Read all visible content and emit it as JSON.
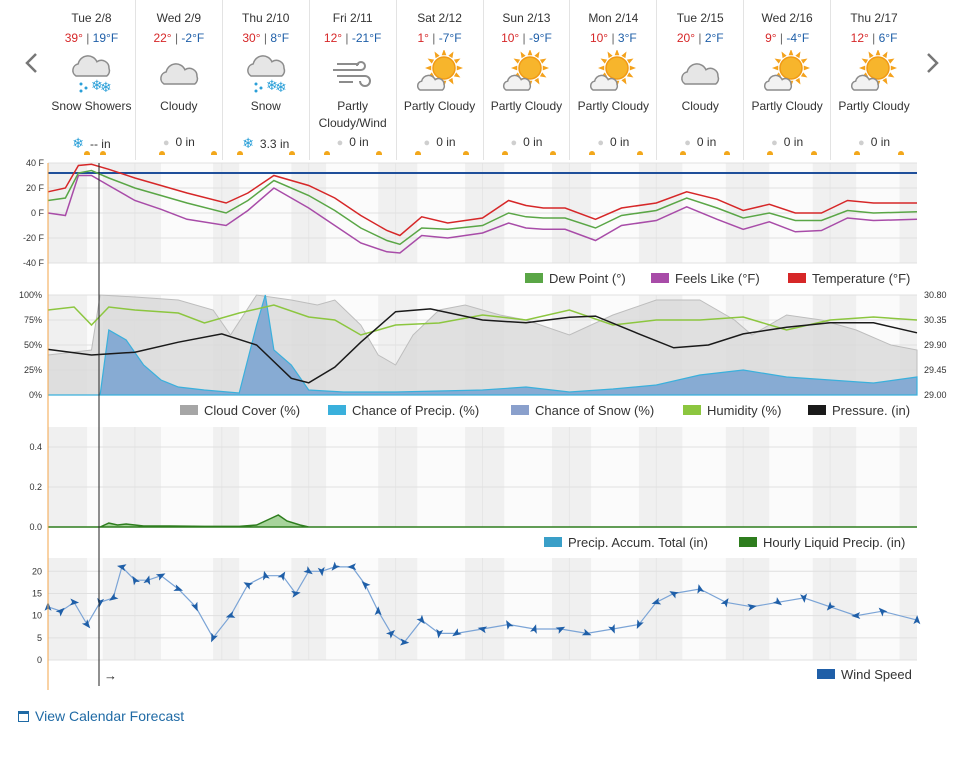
{
  "nav": {
    "prev_icon": "chevron-left-icon",
    "next_icon": "chevron-right-icon"
  },
  "days": [
    {
      "name": "Tue 2/8",
      "hi": "39°",
      "lo": "19°F",
      "icon": "snow-showers-icon",
      "cond": "Snow Showers",
      "precip_type": "snow",
      "precip": "-- in",
      "sun": [
        0.45,
        0.63
      ]
    },
    {
      "name": "Wed 2/9",
      "hi": "22°",
      "lo": "-2°F",
      "icon": "cloudy-icon",
      "cond": "Cloudy",
      "precip_type": "rain",
      "precip": "0 in",
      "sun": [
        0.3,
        0.9
      ]
    },
    {
      "name": "Thu 2/10",
      "hi": "30°",
      "lo": "8°F",
      "icon": "snow-icon",
      "cond": "Snow",
      "precip_type": "snow",
      "precip": "3.3 in",
      "sun": [
        0.2,
        0.8
      ]
    },
    {
      "name": "Fri 2/11",
      "hi": "12°",
      "lo": "-21°F",
      "icon": "partly-cloudy-wind-icon",
      "cond": "Partly Cloudy/Wind",
      "precip_type": "rain",
      "precip": "0 in",
      "sun": [
        0.2,
        0.8
      ]
    },
    {
      "name": "Sat 2/12",
      "hi": "1°",
      "lo": "-7°F",
      "icon": "partly-cloudy-icon",
      "cond": "Partly Cloudy",
      "precip_type": "rain",
      "precip": "0 in",
      "sun": [
        0.25,
        0.8
      ]
    },
    {
      "name": "Sun 2/13",
      "hi": "10°",
      "lo": "-9°F",
      "icon": "partly-cloudy-icon",
      "cond": "Partly Cloudy",
      "precip_type": "rain",
      "precip": "0 in",
      "sun": [
        0.25,
        0.8
      ]
    },
    {
      "name": "Mon 2/14",
      "hi": "10°",
      "lo": "3°F",
      "icon": "partly-cloudy-icon",
      "cond": "Partly Cloudy",
      "precip_type": "rain",
      "precip": "0 in",
      "sun": [
        0.25,
        0.8
      ]
    },
    {
      "name": "Tue 2/15",
      "hi": "20°",
      "lo": "2°F",
      "icon": "cloudy-icon",
      "cond": "Cloudy",
      "precip_type": "rain",
      "precip": "0 in",
      "sun": [
        0.3,
        0.8
      ]
    },
    {
      "name": "Wed 2/16",
      "hi": "9°",
      "lo": "-4°F",
      "icon": "partly-cloudy-icon",
      "cond": "Partly Cloudy",
      "precip_type": "rain",
      "precip": "0 in",
      "sun": [
        0.3,
        0.8
      ]
    },
    {
      "name": "Thu 2/17",
      "hi": "12°",
      "lo": "6°F",
      "icon": "partly-cloudy-icon",
      "cond": "Partly Cloudy",
      "precip_type": "rain",
      "precip": "0 in",
      "sun": [
        0.3,
        0.8
      ]
    }
  ],
  "link": {
    "icon": "calendar-icon",
    "label": "View Calendar Forecast"
  },
  "colors": {
    "temperature": "#d62728",
    "feels": "#a84ca8",
    "dew": "#5aa646",
    "cloud": "#a6a6a6",
    "precip_chance": "#3ab0dc",
    "snow_chance": "#8aa0cc",
    "humidity": "#8cc63f",
    "pressure": "#1a1a1a",
    "accum": "#3a9fc8",
    "hourly": "#2e7d1e",
    "wind": "#1f5fa8",
    "night": "#f0f0f0"
  },
  "chart_data": [
    {
      "type": "line",
      "name_panel": "temperature",
      "x_start_day": 0,
      "x_end_day": 10,
      "ylim": [
        -40,
        40
      ],
      "yticks": [
        "40 F",
        "20 F",
        "0 F",
        "-20 F",
        "-40 F"
      ],
      "freeze_line": 32,
      "legend": [
        "Dew Point (°)",
        "Feels Like (°F)",
        "Temperature (°F)"
      ],
      "series": [
        {
          "name": "Temperature (°F)",
          "x": [
            0,
            0.2,
            0.35,
            0.5,
            0.7,
            1,
            1.3,
            1.6,
            2.05,
            2.3,
            2.6,
            3,
            3.3,
            3.6,
            3.9,
            4.05,
            4.3,
            4.6,
            5,
            5.3,
            5.5,
            5.7,
            5.95,
            6.3,
            6.6,
            7,
            7.35,
            7.7,
            8,
            8.3,
            8.6,
            8.9,
            9.2,
            9.5,
            10
          ],
          "y": [
            17,
            20,
            38,
            39,
            35,
            28,
            22,
            16,
            8,
            16,
            30,
            22,
            12,
            -2,
            -14,
            -18,
            -3,
            -8,
            -4,
            10,
            6,
            4,
            4,
            -5,
            4,
            8,
            17,
            11,
            2,
            7,
            0,
            0,
            10,
            8,
            8
          ]
        },
        {
          "name": "Feels Like (°F)",
          "x": [
            0,
            0.2,
            0.35,
            0.5,
            0.7,
            1,
            1.3,
            1.6,
            2.05,
            2.3,
            2.6,
            3,
            3.3,
            3.6,
            3.9,
            4.05,
            4.3,
            4.6,
            5,
            5.3,
            5.5,
            5.7,
            5.95,
            6.3,
            6.6,
            7,
            7.35,
            7.7,
            8,
            8.3,
            8.6,
            8.9,
            9.2,
            9.5,
            10
          ],
          "y": [
            0,
            -2,
            30,
            30,
            22,
            10,
            3,
            -5,
            -10,
            2,
            20,
            4,
            -10,
            -24,
            -31,
            -32,
            -18,
            -20,
            -16,
            -8,
            -12,
            -13,
            -13,
            -22,
            -10,
            -6,
            5,
            -5,
            -13,
            -7,
            -15,
            -14,
            -4,
            -6,
            -5
          ]
        },
        {
          "name": "Dew Point (°)",
          "x": [
            0,
            0.2,
            0.35,
            0.5,
            0.7,
            1,
            1.3,
            1.6,
            2.05,
            2.3,
            2.6,
            3,
            3.3,
            3.6,
            3.9,
            4.05,
            4.3,
            4.6,
            5,
            5.3,
            5.5,
            5.7,
            5.95,
            6.3,
            6.6,
            7,
            7.35,
            7.7,
            8,
            8.3,
            8.6,
            8.9,
            9.2,
            9.5,
            10
          ],
          "y": [
            10,
            12,
            32,
            34,
            28,
            20,
            14,
            8,
            0,
            10,
            26,
            14,
            2,
            -12,
            -22,
            -25,
            -12,
            -13,
            -10,
            0,
            -3,
            -4,
            -4,
            -12,
            -2,
            2,
            12,
            4,
            -4,
            0,
            -6,
            -6,
            2,
            0,
            1
          ]
        }
      ]
    },
    {
      "type": "area",
      "name_panel": "sky",
      "ylim": [
        0,
        100
      ],
      "yticks": [
        "100%",
        "75%",
        "50%",
        "25%",
        "0%"
      ],
      "y2lim": [
        29.0,
        30.8
      ],
      "y2ticks": [
        "30.80",
        "30.35",
        "29.90",
        "29.45",
        "29.00"
      ],
      "legend": [
        "Cloud Cover (%)",
        "Chance of Precip. (%)",
        "Chance of Snow (%)",
        "Humidity (%)",
        "Pressure. (in)"
      ],
      "series": [
        {
          "name": "Cloud Cover (%)",
          "x": [
            0,
            0.5,
            0.6,
            1,
            1.5,
            1.9,
            2.1,
            2.4,
            2.8,
            3.1,
            3.3,
            3.6,
            3.8,
            4.0,
            4.2,
            4.5,
            4.8,
            5.2,
            5.5,
            6,
            6.5,
            7,
            7.5,
            7.9,
            8.1,
            8.5,
            8.9,
            9.3,
            9.7,
            10
          ],
          "y": [
            40,
            45,
            100,
            98,
            95,
            85,
            60,
            100,
            95,
            90,
            95,
            70,
            40,
            30,
            60,
            85,
            90,
            80,
            75,
            60,
            80,
            95,
            95,
            75,
            60,
            80,
            75,
            65,
            50,
            45
          ]
        },
        {
          "name": "Humidity (%)",
          "x": [
            0,
            0.3,
            0.5,
            0.7,
            1,
            1.5,
            1.8,
            2.2,
            2.6,
            3,
            3.3,
            3.6,
            4,
            4.5,
            5,
            5.5,
            6,
            6.5,
            7,
            7.5,
            8,
            8.5,
            9,
            9.5,
            10
          ],
          "y": [
            85,
            88,
            70,
            88,
            85,
            82,
            72,
            82,
            90,
            78,
            75,
            60,
            70,
            72,
            80,
            75,
            85,
            70,
            75,
            75,
            78,
            65,
            75,
            78,
            75
          ]
        },
        {
          "name": "Chance of Precip. (%)",
          "x": [
            0,
            0.6,
            0.7,
            0.9,
            1.1,
            1.3,
            1.5,
            1.8,
            2.2,
            2.4,
            2.5,
            2.6,
            2.8,
            3,
            3.4,
            4,
            5,
            5.5,
            6,
            6.5,
            7,
            7.5,
            8,
            8.5,
            9,
            9.5,
            10
          ],
          "y": [
            0,
            0,
            65,
            55,
            30,
            15,
            8,
            5,
            2,
            70,
            100,
            45,
            30,
            5,
            3,
            3,
            5,
            8,
            3,
            6,
            10,
            20,
            25,
            18,
            15,
            12,
            18
          ]
        },
        {
          "name": "Chance of Snow (%)",
          "x": [
            0,
            0.6,
            0.7,
            0.9,
            1.1,
            1.3,
            1.5,
            1.8,
            2.2,
            2.4,
            2.5,
            2.6,
            2.8,
            3,
            3.4,
            4,
            5,
            5.5,
            6,
            6.5,
            7,
            7.5,
            8,
            8.5,
            9,
            9.5,
            10
          ],
          "y": [
            0,
            0,
            65,
            55,
            30,
            15,
            8,
            5,
            2,
            70,
            100,
            45,
            30,
            5,
            3,
            3,
            5,
            8,
            3,
            6,
            10,
            20,
            25,
            18,
            15,
            12,
            18
          ]
        },
        {
          "name": "Pressure. (in)",
          "x": [
            0,
            0.5,
            1,
            1.5,
            2,
            2.4,
            2.8,
            3,
            3.3,
            3.6,
            4,
            4.4,
            5,
            5.5,
            6,
            6.3,
            6.8,
            7.2,
            7.6,
            8,
            8.5,
            9,
            9.5,
            10
          ],
          "y": [
            29.82,
            29.72,
            29.77,
            29.95,
            30.1,
            29.9,
            29.3,
            29.22,
            29.5,
            29.95,
            30.5,
            30.55,
            30.35,
            30.3,
            30.4,
            30.42,
            30.1,
            29.85,
            29.9,
            30.1,
            30.22,
            30.3,
            30.3,
            30.12
          ]
        }
      ]
    },
    {
      "type": "area",
      "name_panel": "precip",
      "ylim": [
        0,
        0.5
      ],
      "yticks": [
        "0.4",
        "0.2",
        "0.0"
      ],
      "legend": [
        "Precip. Accum. Total (in)",
        "Hourly Liquid Precip. (in)"
      ],
      "series": [
        {
          "name": "Hourly Liquid Precip. (in)",
          "x": [
            0,
            0.6,
            0.65,
            0.7,
            0.8,
            0.9,
            1.0,
            1.1,
            1.4,
            1.8,
            2.2,
            2.4,
            2.55,
            2.65,
            2.75,
            2.9,
            3.0,
            10
          ],
          "y": [
            0,
            0,
            0.01,
            0.02,
            0.01,
            0.015,
            0.01,
            0.005,
            0.005,
            0.003,
            0.003,
            0.01,
            0.04,
            0.06,
            0.03,
            0.01,
            0,
            0
          ]
        },
        {
          "name": "Precip. Accum. Total (in)",
          "x": [
            0,
            10
          ],
          "y": [
            0,
            0
          ]
        }
      ]
    },
    {
      "type": "line",
      "name_panel": "wind",
      "ylim": [
        0,
        23
      ],
      "yticks": [
        "20",
        "15",
        "10",
        "5",
        "0"
      ],
      "legend": [
        "Wind Speed"
      ],
      "series": [
        {
          "name": "Wind Speed",
          "x": [
            0,
            0.15,
            0.3,
            0.45,
            0.6,
            0.75,
            0.85,
            1,
            1.15,
            1.3,
            1.5,
            1.7,
            1.9,
            2.1,
            2.3,
            2.5,
            2.7,
            2.85,
            3,
            3.15,
            3.3,
            3.5,
            3.65,
            3.8,
            3.95,
            4.1,
            4.3,
            4.5,
            4.7,
            5,
            5.3,
            5.6,
            5.9,
            6.2,
            6.5,
            6.8,
            7,
            7.2,
            7.5,
            7.8,
            8.1,
            8.4,
            8.7,
            9,
            9.3,
            9.6,
            10
          ],
          "y": [
            12,
            11,
            13,
            8,
            13,
            14,
            21,
            18,
            18,
            19,
            16,
            12,
            5,
            10,
            17,
            19,
            19,
            15,
            20,
            20,
            21,
            21,
            17,
            11,
            6,
            4,
            9,
            6,
            6,
            7,
            8,
            7,
            7,
            6,
            7,
            8,
            13,
            15,
            16,
            13,
            12,
            13,
            14,
            12,
            10,
            11,
            9
          ]
        }
      ]
    }
  ]
}
